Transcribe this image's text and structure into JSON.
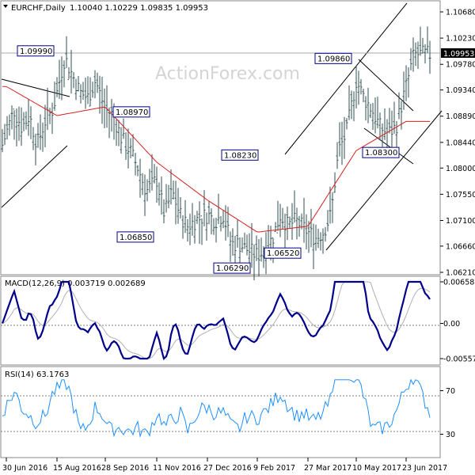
{
  "watermark": "ActionForex.com",
  "price_panel": {
    "symbol_header": "EURCHF,Daily",
    "ohlc_header": "1.10040 1.10229 1.09835 1.09953",
    "current_price_label": "1.09953",
    "y_ticks": [
      "1.10680",
      "1.10230",
      "1.09780",
      "1.09340",
      "1.08890",
      "1.08440",
      "1.08000",
      "1.07550",
      "1.07100",
      "1.06660",
      "1.06210"
    ],
    "annotations": [
      "1.09990",
      "1.08970",
      "1.08230",
      "1.09860",
      "1.06850",
      "1.06290",
      "1.06520",
      "1.08300"
    ]
  },
  "macd_panel": {
    "header": "MACD(12,26,9) 0.003719 0.002689",
    "y_ticks": [
      "0.006585",
      "0.00",
      "-0.005577"
    ]
  },
  "rsi_panel": {
    "header": "RSI(14) 63.1763",
    "y_ticks": [
      "70",
      "30"
    ]
  },
  "x_ticks": [
    "30 Jun 2016",
    "15 Aug 2016",
    "28 Sep 2016",
    "11 Nov 2016",
    "27 Dec 2016",
    "9 Feb 2017",
    "27 Mar 2017",
    "10 May 2017",
    "23 Jun 2017"
  ],
  "colors": {
    "candle": "#2f4f4f",
    "ma": "#d62020",
    "macd": "#00008b",
    "signal": "#b0b0b0",
    "rsi": "#1e90ff",
    "grid": "#808080"
  },
  "chart_data": {
    "type": "line",
    "price": {
      "x": [
        "30 Jun 2016",
        "15 Aug 2016",
        "28 Sep 2016",
        "11 Nov 2016",
        "27 Dec 2016",
        "9 Feb 2017",
        "27 Mar 2017",
        "10 May 2017",
        "23 Jun 2017"
      ],
      "close_path": [
        [
          "30 Jun 2016",
          1.086
        ],
        [
          "7 Jul 2016",
          1.09
        ],
        [
          "14 Jul 2016",
          1.087
        ],
        [
          "21 Jul 2016",
          1.089
        ],
        [
          "28 Jul 2016",
          1.084
        ],
        [
          "4 Aug 2016",
          1.088
        ],
        [
          "11 Aug 2016",
          1.09
        ],
        [
          "15 Aug 2016",
          1.093
        ],
        [
          "22 Aug 2016",
          1.099
        ],
        [
          "29 Aug 2016",
          1.096
        ],
        [
          "5 Sep 2016",
          1.093
        ],
        [
          "12 Sep 2016",
          1.092
        ],
        [
          "19 Sep 2016",
          1.095
        ],
        [
          "28 Sep 2016",
          1.09
        ],
        [
          "5 Oct 2016",
          1.089
        ],
        [
          "12 Oct 2016",
          1.085
        ],
        [
          "19 Oct 2016",
          1.083
        ],
        [
          "26 Oct 2016",
          1.08
        ],
        [
          "2 Nov 2016",
          1.076
        ],
        [
          "11 Nov 2016",
          1.078
        ],
        [
          "18 Nov 2016",
          1.072
        ],
        [
          "25 Nov 2016",
          1.076
        ],
        [
          "2 Dec 2016",
          1.072
        ],
        [
          "9 Dec 2016",
          1.07
        ],
        [
          "16 Dec 2016",
          1.071
        ],
        [
          "27 Dec 2016",
          1.072
        ],
        [
          "3 Jan 2017",
          1.071
        ],
        [
          "10 Jan 2017",
          1.072
        ],
        [
          "17 Jan 2017",
          1.067
        ],
        [
          "24 Jan 2017",
          1.067
        ],
        [
          "31 Jan 2017",
          1.066
        ],
        [
          "9 Feb 2017",
          1.065
        ],
        [
          "16 Feb 2017",
          1.066
        ],
        [
          "23 Feb 2017",
          1.068
        ],
        [
          "2 Mar 2017",
          1.072
        ],
        [
          "9 Mar 2017",
          1.07
        ],
        [
          "16 Mar 2017",
          1.071
        ],
        [
          "27 Mar 2017",
          1.069
        ],
        [
          "3 Apr 2017",
          1.068
        ],
        [
          "10 Apr 2017",
          1.069
        ],
        [
          "17 Apr 2017",
          1.072
        ],
        [
          "24 Apr 2017",
          1.083
        ],
        [
          "1 May 2017",
          1.086
        ],
        [
          "10 May 2017",
          1.095
        ],
        [
          "17 May 2017",
          1.092
        ],
        [
          "24 May 2017",
          1.09
        ],
        [
          "31 May 2017",
          1.087
        ],
        [
          "7 Jun 2017",
          1.086
        ],
        [
          "14 Jun 2017",
          1.087
        ],
        [
          "23 Jun 2017",
          1.094
        ],
        [
          "30 Jun 2017",
          1.0995
        ]
      ],
      "ma_path": [
        [
          "30 Jun 2016",
          1.094
        ],
        [
          "15 Aug 2016",
          1.089
        ],
        [
          "28 Sep 2016",
          1.0905
        ],
        [
          "11 Nov 2016",
          1.081
        ],
        [
          "27 Dec 2016",
          1.0745
        ],
        [
          "9 Feb 2017",
          1.069
        ],
        [
          "27 Mar 2017",
          1.07
        ],
        [
          "10 May 2017",
          1.083
        ],
        [
          "23 Jun 2017",
          1.088
        ]
      ],
      "annotations": [
        {
          "date": "15 Aug 2016",
          "value": 1.0999,
          "text": "1.09990"
        },
        {
          "date": "11 Nov 2016",
          "value": 1.0897,
          "text": "1.08970"
        },
        {
          "date": "9 Feb 2017",
          "value": 1.0823,
          "text": "1.08230"
        },
        {
          "date": "10 May 2017",
          "value": 1.0986,
          "text": "1.09860"
        },
        {
          "date": "11 Nov 2016",
          "value": 1.0685,
          "text": "1.06850"
        },
        {
          "date": "9 Feb 2017",
          "value": 1.0629,
          "text": "1.06290"
        },
        {
          "date": "27 Mar 2017",
          "value": 1.0652,
          "text": "1.06520"
        },
        {
          "date": "23 Jun 2017",
          "value": 1.083,
          "text": "1.08300"
        }
      ],
      "ylim": [
        1.0621,
        1.1068
      ],
      "last": 1.09953
    },
    "macd": {
      "ylim": [
        -0.005577,
        0.006585
      ],
      "value": 0.003719,
      "signal": 0.002689
    },
    "rsi": {
      "ylim": [
        10,
        90
      ],
      "levels": [
        70,
        30
      ],
      "value": 63.1763
    }
  }
}
